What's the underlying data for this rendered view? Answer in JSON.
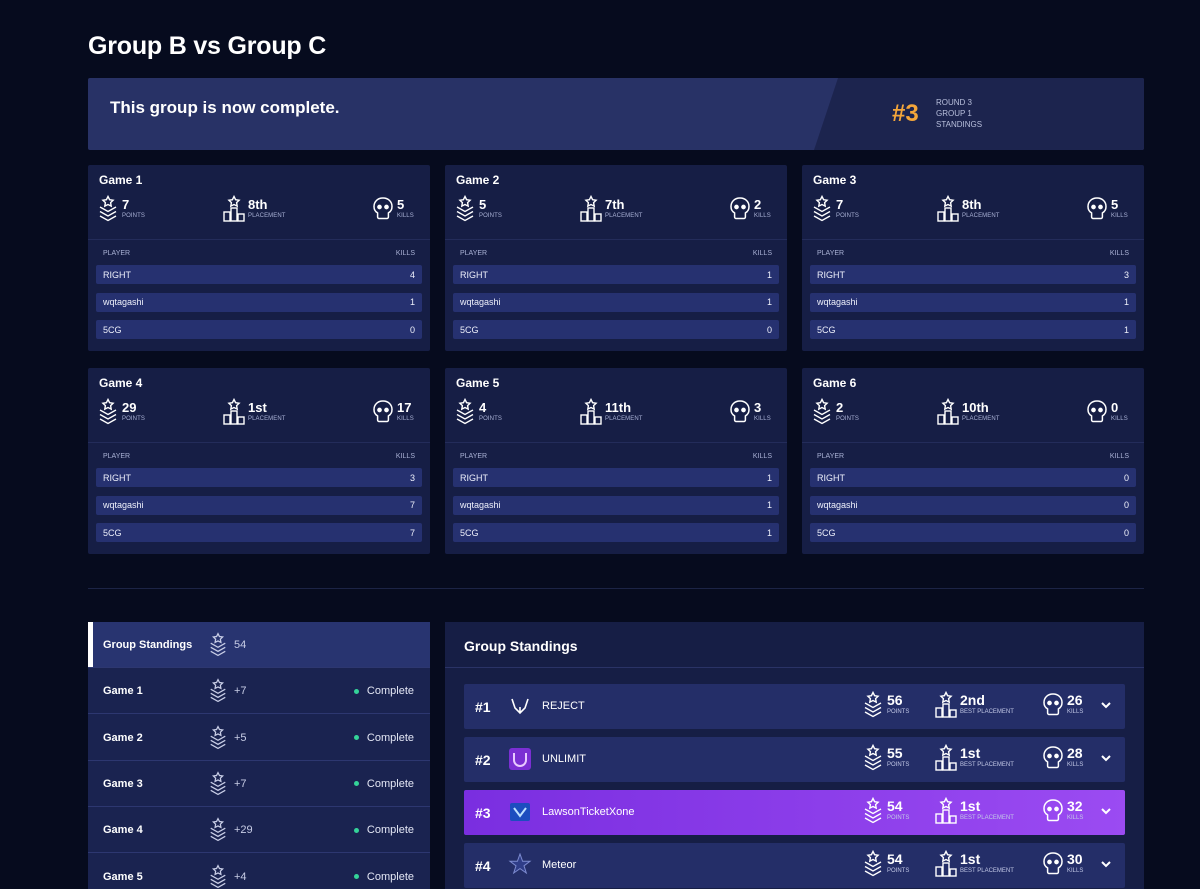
{
  "page_title": "Group B vs Group C",
  "banner": {
    "message": "This group is now complete.",
    "rank": "#3",
    "meta": [
      "ROUND 3",
      "GROUP 1",
      "STANDINGS"
    ]
  },
  "labels": {
    "points": "POINTS",
    "placement": "PLACEMENT",
    "kills": "KILLS",
    "player": "PLAYER",
    "kills_col": "KILLS",
    "best_placement": "BEST PLACEMENT"
  },
  "games": [
    {
      "title": "Game 1",
      "points": "7",
      "placement": "8th",
      "kills": "5",
      "players": [
        {
          "name": "RIGHT",
          "kills": "4"
        },
        {
          "name": "wqtagashi",
          "kills": "1"
        },
        {
          "name": "5CG",
          "kills": "0"
        }
      ]
    },
    {
      "title": "Game 2",
      "points": "5",
      "placement": "7th",
      "kills": "2",
      "players": [
        {
          "name": "RIGHT",
          "kills": "1"
        },
        {
          "name": "wqtagashi",
          "kills": "1"
        },
        {
          "name": "5CG",
          "kills": "0"
        }
      ]
    },
    {
      "title": "Game 3",
      "points": "7",
      "placement": "8th",
      "kills": "5",
      "players": [
        {
          "name": "RIGHT",
          "kills": "3"
        },
        {
          "name": "wqtagashi",
          "kills": "1"
        },
        {
          "name": "5CG",
          "kills": "1"
        }
      ]
    },
    {
      "title": "Game 4",
      "points": "29",
      "placement": "1st",
      "kills": "17",
      "players": [
        {
          "name": "RIGHT",
          "kills": "3"
        },
        {
          "name": "wqtagashi",
          "kills": "7"
        },
        {
          "name": "5CG",
          "kills": "7"
        }
      ]
    },
    {
      "title": "Game 5",
      "points": "4",
      "placement": "11th",
      "kills": "3",
      "players": [
        {
          "name": "RIGHT",
          "kills": "1"
        },
        {
          "name": "wqtagashi",
          "kills": "1"
        },
        {
          "name": "5CG",
          "kills": "1"
        }
      ]
    },
    {
      "title": "Game 6",
      "points": "2",
      "placement": "10th",
      "kills": "0",
      "players": [
        {
          "name": "RIGHT",
          "kills": "0"
        },
        {
          "name": "wqtagashi",
          "kills": "0"
        },
        {
          "name": "5CG",
          "kills": "0"
        }
      ]
    }
  ],
  "side_list": [
    {
      "name": "Group Standings",
      "points": "54",
      "status": "",
      "active": true
    },
    {
      "name": "Game 1",
      "points": "+7",
      "status": "Complete"
    },
    {
      "name": "Game 2",
      "points": "+5",
      "status": "Complete"
    },
    {
      "name": "Game 3",
      "points": "+7",
      "status": "Complete"
    },
    {
      "name": "Game 4",
      "points": "+29",
      "status": "Complete"
    },
    {
      "name": "Game 5",
      "points": "+4",
      "status": "Complete"
    }
  ],
  "standings": {
    "title": "Group Standings",
    "rows": [
      {
        "rank": "#1",
        "team": "REJECT",
        "points": "56",
        "best_placement": "2nd",
        "kills": "26",
        "logo": "reject-logo-icon"
      },
      {
        "rank": "#2",
        "team": "UNLIMIT",
        "points": "55",
        "best_placement": "1st",
        "kills": "28",
        "logo": "unlimit-logo-icon"
      },
      {
        "rank": "#3",
        "team": "LawsonTicketXone",
        "points": "54",
        "best_placement": "1st",
        "kills": "32",
        "logo": "lawson-logo-icon",
        "highlight": true
      },
      {
        "rank": "#4",
        "team": "Meteor",
        "points": "54",
        "best_placement": "1st",
        "kills": "30",
        "logo": "meteor-logo-icon"
      }
    ]
  },
  "colors": {
    "accent": "#f4a63a",
    "highlight": "#8a3bea",
    "complete": "#34d399"
  }
}
